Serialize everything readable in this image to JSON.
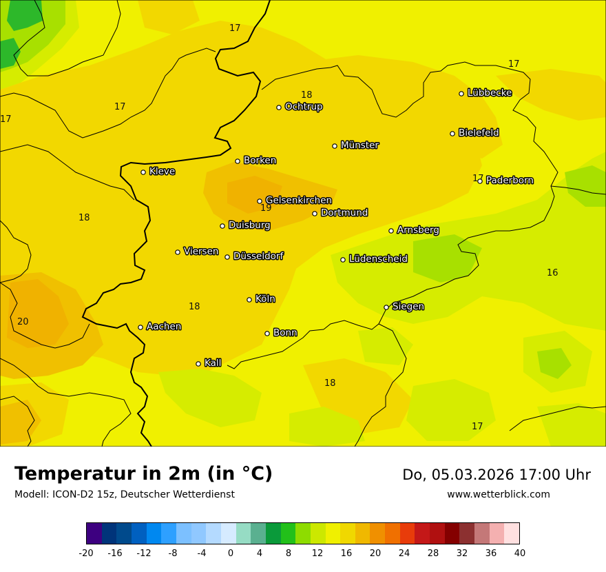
{
  "title": "Temperatur in 2m (in °C)",
  "subtitle": "Modell: ICON-D2 15z, Deutscher Wetterdienst",
  "datetime": "Do, 05.03.2026 17:00 Uhr",
  "website": "www.wetterblick.com",
  "colors": {
    "map_background": "#f0f000",
    "warm_zone": "#f2d800",
    "warmer_zone": "#f0c000",
    "hot_zone": "#f0b200",
    "cool_zone": "#d6ec00",
    "cooler_zone": "#a8e000",
    "cold_zone": "#2db82a"
  },
  "cities": [
    {
      "name": "Ochtrup"
    },
    {
      "name": "Münster"
    },
    {
      "name": "Lübbecke"
    },
    {
      "name": "Bielefeld"
    },
    {
      "name": "Borken"
    },
    {
      "name": "Kleve"
    },
    {
      "name": "Paderborn"
    },
    {
      "name": "Gelsenkirchen"
    },
    {
      "name": "Dortmund"
    },
    {
      "name": "Duisburg"
    },
    {
      "name": "Arnsberg"
    },
    {
      "name": "Viersen"
    },
    {
      "name": "Düsseldorf"
    },
    {
      "name": "Lüdenscheid"
    },
    {
      "name": "Köln"
    },
    {
      "name": "Siegen"
    },
    {
      "name": "Aachen"
    },
    {
      "name": "Bonn"
    },
    {
      "name": "Kall"
    }
  ],
  "value_labels": [
    "17",
    "17",
    "17",
    "17",
    "18",
    "17",
    "18",
    "19",
    "16",
    "18",
    "20",
    "18",
    "17"
  ],
  "legend": {
    "colors": [
      "#3d0080",
      "#00347a",
      "#004a8c",
      "#0060c0",
      "#0088f0",
      "#2ea0ff",
      "#7cc0ff",
      "#90c8ff",
      "#b4daff",
      "#d6ebff",
      "#96dcc4",
      "#5ab090",
      "#0a9a3a",
      "#22c01a",
      "#8edc00",
      "#cce800",
      "#f0f000",
      "#f0d800",
      "#f0b800",
      "#f09000",
      "#f07000",
      "#e83c0a",
      "#c41818",
      "#b01010",
      "#840000",
      "#8c3030",
      "#c47878",
      "#f4b0b0",
      "#ffe0e0"
    ],
    "ticks": [
      "-20",
      "-16",
      "-12",
      "-8",
      "-4",
      "0",
      "4",
      "8",
      "12",
      "16",
      "20",
      "24",
      "28",
      "32",
      "36",
      "40"
    ]
  }
}
